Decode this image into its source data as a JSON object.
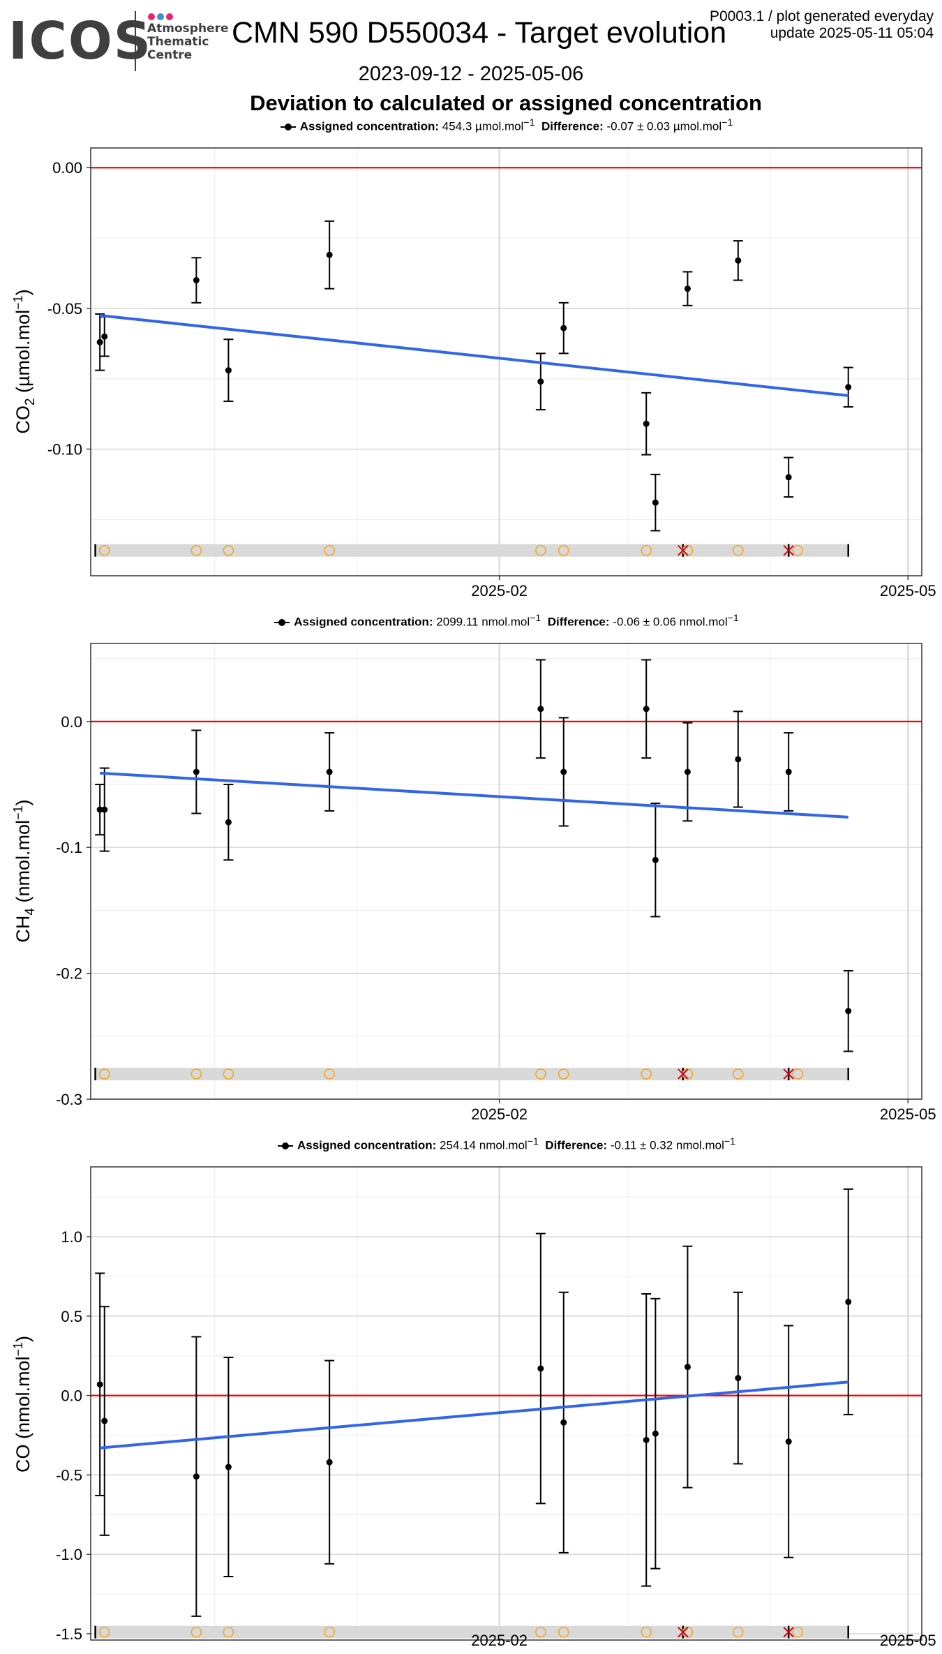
{
  "header": {
    "logo_text": "ICOS",
    "logo_subtitle_lines": [
      "Atmosphere",
      "Thematic",
      "Centre"
    ],
    "logo_dot_colors": [
      "#e6256e",
      "#3a8fd6",
      "#e6256e"
    ],
    "title": "CMN 590 D550034 - Target evolution",
    "meta_line1": "P0003.1 / plot generated everyday",
    "meta_line2": "update  2025-05-11 05:04",
    "date_range": "2023-09-12 - 2025-05-06",
    "subtitle": "Deviation to calculated or assigned concentration"
  },
  "chart_data": [
    {
      "type": "scatter",
      "gas": "CO2",
      "ylabel_main": "CO",
      "ylabel_sub": "2",
      "ylabel_unit": "(µmol.mol",
      "legend": {
        "assigned_label": "Assigned concentration:",
        "assigned_value": "454.3 µmol.mol",
        "difference_label": "Difference:",
        "difference_value": "-0.07 ± 0.03 µmol.mol"
      },
      "ylim": [
        -0.145,
        0.007
      ],
      "y_ticks": [
        0.0,
        -0.05,
        -0.1
      ],
      "y_tick_labels": [
        "0.00",
        "-0.05",
        "-0.10"
      ],
      "x_ticks": [
        "2025-02",
        "2025-05"
      ],
      "reference_line": 0,
      "trend": {
        "start": -0.0525,
        "end": -0.081
      },
      "flag_strip_y": -0.136,
      "points": [
        {
          "date": "2024-11-06",
          "y": -0.062,
          "err": 0.01
        },
        {
          "date": "2024-11-07",
          "y": -0.06,
          "err": 0.007
        },
        {
          "date": "2024-11-27",
          "y": -0.04,
          "err": 0.008
        },
        {
          "date": "2024-12-04",
          "y": -0.072,
          "err": 0.011
        },
        {
          "date": "2024-12-26",
          "y": -0.031,
          "err": 0.012
        },
        {
          "date": "2025-02-10",
          "y": -0.076,
          "err": 0.01
        },
        {
          "date": "2025-02-15",
          "y": -0.057,
          "err": 0.009
        },
        {
          "date": "2025-03-05",
          "y": -0.091,
          "err": 0.011
        },
        {
          "date": "2025-03-07",
          "y": -0.119,
          "err": 0.01
        },
        {
          "date": "2025-03-14",
          "y": -0.043,
          "err": 0.006
        },
        {
          "date": "2025-03-25",
          "y": -0.033,
          "err": 0.007
        },
        {
          "date": "2025-04-05",
          "y": -0.11,
          "err": 0.007
        },
        {
          "date": "2025-04-18",
          "y": -0.078,
          "err": 0.007
        }
      ]
    },
    {
      "type": "scatter",
      "gas": "CH4",
      "ylabel_main": "CH",
      "ylabel_sub": "4",
      "ylabel_unit": "(nmol.mol",
      "legend": {
        "assigned_label": "Assigned concentration:",
        "assigned_value": "2099.11 nmol.mol",
        "difference_label": "Difference:",
        "difference_value": "-0.06 ± 0.06 nmol.mol"
      },
      "ylim": [
        -0.3,
        0.062
      ],
      "y_ticks": [
        0.0,
        -0.1,
        -0.2,
        -0.3
      ],
      "y_tick_labels": [
        "0.0",
        "-0.1",
        "-0.2",
        "-0.3"
      ],
      "x_ticks": [
        "2025-02",
        "2025-05"
      ],
      "reference_line": 0,
      "trend": {
        "start": -0.041,
        "end": -0.076
      },
      "flag_strip_y": -0.28,
      "points": [
        {
          "date": "2024-11-06",
          "y": -0.07,
          "err": 0.02
        },
        {
          "date": "2024-11-07",
          "y": -0.07,
          "err": 0.033
        },
        {
          "date": "2024-11-27",
          "y": -0.04,
          "err": 0.033
        },
        {
          "date": "2024-12-04",
          "y": -0.08,
          "err": 0.03
        },
        {
          "date": "2024-12-26",
          "y": -0.04,
          "err": 0.031
        },
        {
          "date": "2025-02-10",
          "y": 0.01,
          "err": 0.039
        },
        {
          "date": "2025-02-15",
          "y": -0.04,
          "err": 0.043
        },
        {
          "date": "2025-03-05",
          "y": 0.01,
          "err": 0.039
        },
        {
          "date": "2025-03-07",
          "y": -0.11,
          "err": 0.045
        },
        {
          "date": "2025-03-14",
          "y": -0.04,
          "err": 0.039
        },
        {
          "date": "2025-03-25",
          "y": -0.03,
          "err": 0.038
        },
        {
          "date": "2025-04-05",
          "y": -0.04,
          "err": 0.031
        },
        {
          "date": "2025-04-18",
          "y": -0.23,
          "err": 0.032
        }
      ]
    },
    {
      "type": "scatter",
      "gas": "CO",
      "ylabel_main": "CO",
      "ylabel_sub": "",
      "ylabel_unit": "(nmol.mol",
      "legend": {
        "assigned_label": "Assigned concentration:",
        "assigned_value": "254.14 nmol.mol",
        "difference_label": "Difference:",
        "difference_value": "-0.11 ± 0.32 nmol.mol"
      },
      "ylim": [
        -1.54,
        1.44
      ],
      "y_ticks": [
        1.0,
        0.5,
        0.0,
        -0.5,
        -1.0,
        -1.5
      ],
      "y_tick_labels": [
        "1.0",
        "0.5",
        "0.0",
        "-0.5",
        "-1.0",
        "-1.5"
      ],
      "x_ticks": [
        "2025-02",
        "2025-05"
      ],
      "reference_line": 0,
      "trend": {
        "start": -0.33,
        "end": 0.085
      },
      "flag_strip_y": -1.49,
      "points": [
        {
          "date": "2024-11-06",
          "y": 0.07,
          "err": 0.7
        },
        {
          "date": "2024-11-07",
          "y": -0.16,
          "err": 0.72
        },
        {
          "date": "2024-11-27",
          "y": -0.51,
          "err": 0.88
        },
        {
          "date": "2024-12-04",
          "y": -0.45,
          "err": 0.69
        },
        {
          "date": "2024-12-26",
          "y": -0.42,
          "err": 0.64
        },
        {
          "date": "2025-02-10",
          "y": 0.17,
          "err": 0.85
        },
        {
          "date": "2025-02-15",
          "y": -0.17,
          "err": 0.82
        },
        {
          "date": "2025-03-05",
          "y": -0.28,
          "err": 0.92
        },
        {
          "date": "2025-03-07",
          "y": -0.24,
          "err": 0.85
        },
        {
          "date": "2025-03-14",
          "y": 0.18,
          "err": 0.76
        },
        {
          "date": "2025-03-25",
          "y": 0.11,
          "err": 0.54
        },
        {
          "date": "2025-04-05",
          "y": -0.29,
          "err": 0.73
        },
        {
          "date": "2025-04-18",
          "y": 0.59,
          "err": 0.71
        }
      ]
    }
  ],
  "flags": {
    "circle_dates": [
      "2024-11-07",
      "2024-11-27",
      "2024-12-04",
      "2024-12-26",
      "2025-02-10",
      "2025-02-15",
      "2025-03-05",
      "2025-03-14",
      "2025-03-25",
      "2025-04-07"
    ],
    "cross_dates": [
      "2025-03-13",
      "2025-04-05"
    ],
    "tick_dates": [
      "2024-11-05",
      "2025-03-13",
      "2025-04-05",
      "2025-04-18"
    ],
    "circle_color": "#f5a623",
    "cross_color": "#d0021b",
    "strip_color": "#d9d9d9"
  },
  "colors": {
    "trend": "#3366e6",
    "reference": "#ff0000",
    "points": "#000000",
    "grid_major": "#d4d4d4",
    "grid_minor": "#ececec",
    "panel_border": "#333333"
  }
}
